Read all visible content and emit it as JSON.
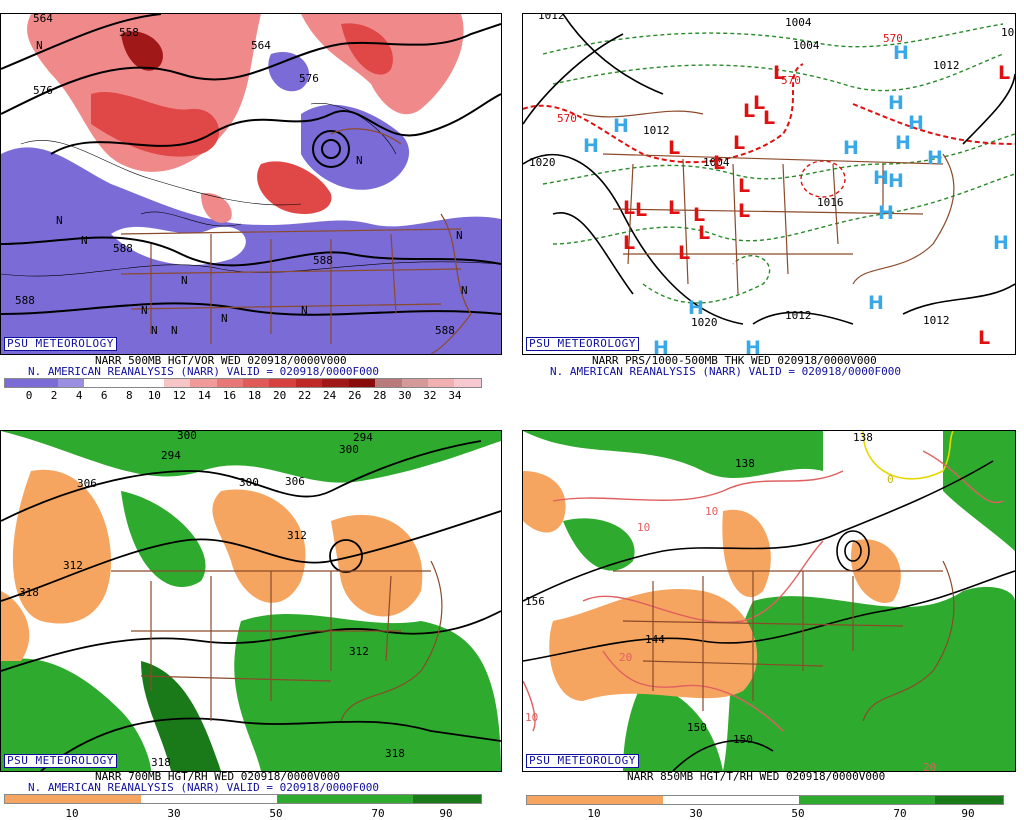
{
  "colors": {
    "purple": "#7b6bd6",
    "red_light": "#f08a8a",
    "red_mid": "#e04848",
    "red_dark": "#a01818",
    "orange": "#f5a560",
    "green": "#2eaa2e",
    "green_dark": "#1a7a1a",
    "brown": "#8b4a2b",
    "blue_label": "#1010a0",
    "H_blue": "#38a8e8",
    "L_red": "#e01010",
    "thick_green": "#2a8a2a"
  },
  "panels": [
    {
      "id": "vort",
      "badge": "PSU METEOROLOGY",
      "line1": "NARR 500MB HGT/VOR WED 020918/0000V000",
      "line2": "N. AMERICAN REANALYSIS (NARR) VALID = 020918/0000F000",
      "scale_ticks": [
        "0",
        "2",
        "4",
        "6",
        "8",
        "10",
        "12",
        "14",
        "16",
        "18",
        "20",
        "22",
        "24",
        "26",
        "28",
        "30",
        "32",
        "34"
      ],
      "scale_colors": [
        "#7b6bd6",
        "#7b6bd6",
        "#9a8ee0",
        "#ffffff",
        "#ffffff",
        "#ffffff",
        "#f6c6c6",
        "#f09a9a",
        "#e87878",
        "#e05a5a",
        "#d84040",
        "#c02828",
        "#a01818",
        "#880c0c",
        "#b87a7a",
        "#d49a9a",
        "#f0b0b0",
        "#f8c8d0"
      ],
      "contour_labels": [
        "564",
        "558",
        "564",
        "576",
        "576",
        "588",
        "588",
        "588",
        "588"
      ],
      "n_marks": [
        "N",
        "N",
        "N",
        "N",
        "N",
        "N",
        "N",
        "N",
        "N",
        "N",
        "N",
        "N"
      ]
    },
    {
      "id": "sfc",
      "badge": "PSU METEOROLOGY",
      "line1": "NARR PRS/1000-500MB THK WED 020918/0000V000",
      "line2": "N. AMERICAN REANALYSIS (NARR) VALID = 020918/0000F000",
      "labels": [
        "1012",
        "1012",
        "1004",
        "1004",
        "1020",
        "1020",
        "1012",
        "1012",
        "1012",
        "570",
        "570",
        "570",
        "1004",
        "1016",
        "10"
      ],
      "highs": [
        "H",
        "H",
        "H",
        "H",
        "H",
        "H",
        "H",
        "H",
        "H",
        "H",
        "H",
        "H",
        "H",
        "H",
        "H",
        "H"
      ],
      "lows": [
        "L",
        "L",
        "L",
        "L",
        "L",
        "L",
        "L",
        "L",
        "L",
        "L",
        "L",
        "L",
        "L",
        "L",
        "L",
        "L",
        "L",
        "L"
      ]
    },
    {
      "id": "rh700",
      "badge": "PSU METEOROLOGY",
      "line1": "NARR 700MB HGT/RH WED 020918/0000V000",
      "line2": "N. AMERICAN REANALYSIS (NARR) VALID = 020918/0000F000",
      "scale_ticks": [
        "10",
        "30",
        "50",
        "70",
        "90"
      ],
      "contour_labels": [
        "300",
        "294",
        "306",
        "300",
        "306",
        "312",
        "312",
        "318",
        "312",
        "318",
        "294",
        "300",
        "318"
      ]
    },
    {
      "id": "t850",
      "badge": "PSU METEOROLOGY",
      "line1": "NARR 850MB HGT/T/RH WED 020918/0000V000",
      "scale_ticks": [
        "10",
        "30",
        "50",
        "70",
        "90"
      ],
      "contour_labels": [
        "138",
        "138",
        "156",
        "144",
        "150",
        "150",
        "10",
        "10",
        "20",
        "10",
        "0",
        "20"
      ]
    }
  ]
}
